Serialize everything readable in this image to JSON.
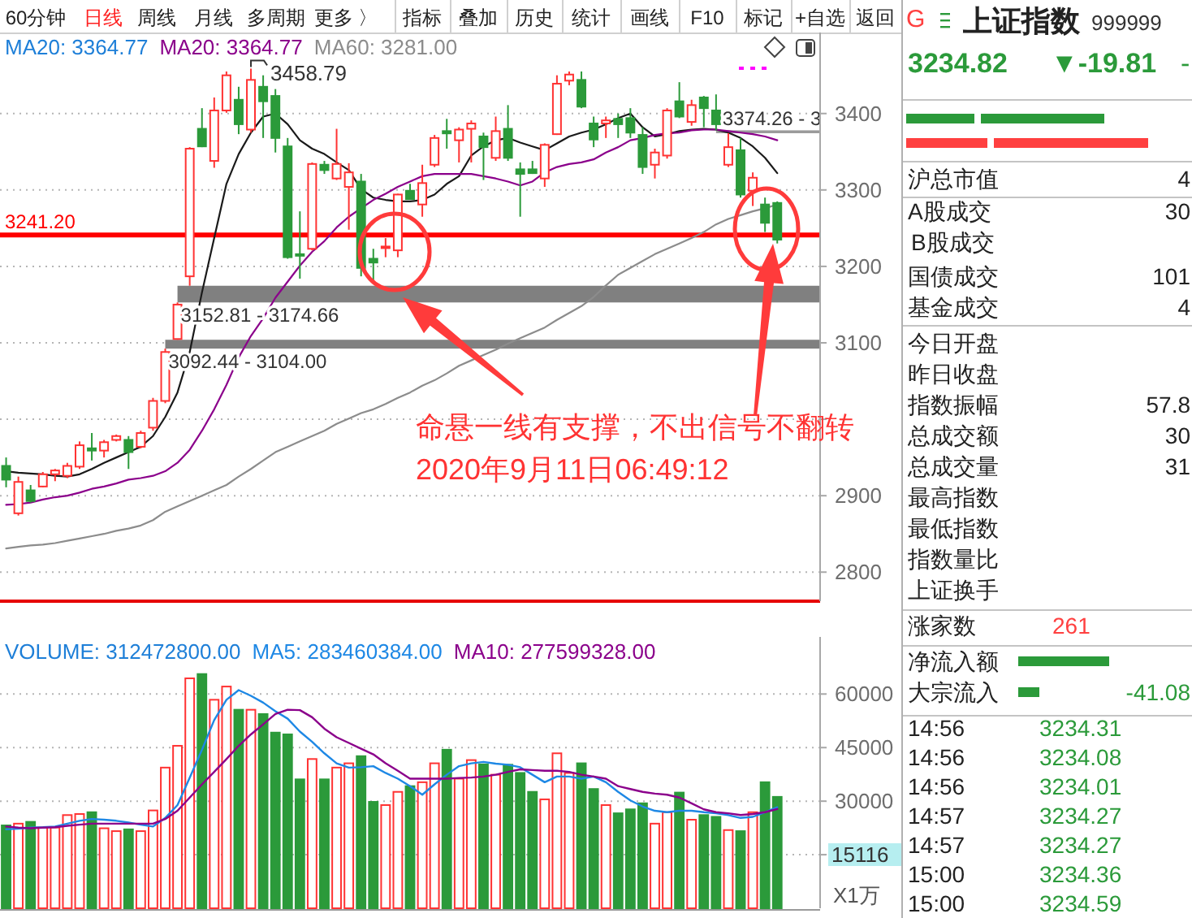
{
  "chart_data": [
    {
      "type": "other",
      "annotations": [
        "60分钟",
        "日线",
        "周线",
        "月线",
        "多周期",
        "更多 〉",
        "指标",
        "叠加",
        "历史",
        "统计",
        "画线",
        "F10",
        "标记",
        "+自选",
        "返回"
      ]
    },
    {
      "type": "candlestick",
      "categories": [
        null,
        null,
        null,
        null,
        null,
        null,
        null,
        null,
        null,
        null,
        null,
        null,
        null,
        null,
        null,
        null,
        null,
        null,
        null,
        null,
        null,
        null,
        null,
        null,
        null,
        null,
        null,
        null,
        null,
        null,
        null,
        null,
        null,
        null,
        null,
        null,
        null,
        null,
        null,
        null,
        null,
        null,
        null,
        null,
        null,
        null,
        null,
        null,
        null,
        null,
        null,
        null,
        null,
        null,
        null,
        null,
        null,
        null,
        null,
        null,
        null,
        null,
        null,
        null,
        null,
        null,
        null
      ],
      "ohlc": [
        [
          2939,
          2950,
          2911,
          2921
        ],
        [
          2877,
          2925,
          2874,
          2918
        ],
        [
          2907,
          2914,
          2891,
          2893
        ],
        [
          2912,
          2931,
          2911,
          2928
        ],
        [
          2928,
          2935,
          2919,
          2933
        ],
        [
          2926,
          2943,
          2923,
          2939
        ],
        [
          2938,
          2971,
          2935,
          2966
        ],
        [
          2962,
          2982,
          2946,
          2959
        ],
        [
          2959,
          2973,
          2950,
          2970
        ],
        [
          2973,
          2980,
          2971,
          2978
        ],
        [
          2973,
          2978,
          2935,
          2957
        ],
        [
          2964,
          2985,
          2962,
          2982
        ],
        [
          2989,
          3028,
          2985,
          3024
        ],
        [
          3024,
          3092.44,
          3021,
          3088
        ],
        [
          3105,
          3152.81,
          3104.0,
          3150
        ],
        [
          3187,
          3356,
          3174.66,
          3354
        ],
        [
          3380,
          3407,
          3356,
          3357
        ],
        [
          3338,
          3421,
          3329,
          3404
        ],
        [
          3404,
          3455,
          3401,
          3450
        ],
        [
          3418,
          3435,
          3373,
          3386
        ],
        [
          3379,
          3458.79,
          3375,
          3444
        ],
        [
          3435,
          3450,
          3368,
          3416
        ],
        [
          3423,
          3432,
          3349,
          3368
        ],
        [
          3357,
          3368,
          3210,
          3212
        ],
        [
          3216,
          3272,
          3184,
          3214
        ],
        [
          3223,
          3336,
          3221,
          3334
        ],
        [
          3333,
          3338,
          3321,
          3326
        ],
        [
          3315,
          3380,
          3313,
          3334
        ],
        [
          3304,
          3335,
          3248,
          3323
        ],
        [
          3311,
          3321,
          3187,
          3198
        ],
        [
          3210,
          3223,
          3177,
          3205
        ],
        [
          3224,
          3237,
          3212,
          3226
        ],
        [
          3221,
          3295,
          3212,
          3294
        ],
        [
          3299,
          3308,
          3287,
          3288
        ],
        [
          3281,
          3333,
          3265,
          3309
        ],
        [
          3333,
          3372,
          3330,
          3368
        ],
        [
          3377,
          3393,
          3354,
          3374
        ],
        [
          3365,
          3382,
          3336,
          3379
        ],
        [
          3380,
          3391,
          3336,
          3387
        ],
        [
          3370,
          3375,
          3313,
          3356
        ],
        [
          3342,
          3396,
          3338,
          3377
        ],
        [
          3380,
          3411,
          3338,
          3342
        ],
        [
          3327,
          3336,
          3265,
          3321
        ],
        [
          3327,
          3338,
          3321,
          3322
        ],
        [
          3315,
          3361,
          3304,
          3359
        ],
        [
          3373,
          3450,
          3372,
          3439
        ],
        [
          3443,
          3455,
          3437,
          3451
        ],
        [
          3444,
          3455,
          3407,
          3409
        ],
        [
          3387,
          3396,
          3356,
          3366
        ],
        [
          3387,
          3396,
          3368,
          3391
        ],
        [
          3393,
          3400,
          3368,
          3386
        ],
        [
          3394,
          3407,
          3368,
          3375
        ],
        [
          3372,
          3382,
          3321,
          3330
        ],
        [
          3333,
          3354,
          3315,
          3349
        ],
        [
          3345,
          3407,
          3341,
          3404
        ],
        [
          3416,
          3441,
          3394,
          3396
        ],
        [
          3389,
          3418,
          3384,
          3411
        ],
        [
          3421,
          3423,
          3382,
          3407
        ],
        [
          3404,
          3425,
          3378,
          3386
        ],
        [
          3333,
          3374.26,
          3330,
          3356
        ],
        [
          3352,
          3368,
          3290,
          3294
        ],
        [
          3299,
          3323,
          3279,
          3316
        ],
        [
          3281,
          3290,
          3245,
          3257
        ],
        [
          3283,
          3285,
          3230,
          3235
        ],
        null,
        null,
        null
      ],
      "colors": [
        "#2b9a3a",
        "#ff3333",
        "#2b9a3a",
        "#ff3333",
        "#ff3333",
        "#ff3333",
        "#ff3333",
        "#2b9a3a",
        "#ff3333",
        "#ff3333",
        "#2b9a3a",
        "#ff3333",
        "#ff3333",
        "#ff3333",
        "#ff3333",
        "#ff3333",
        "#2b9a3a",
        "#ff3333",
        "#ff3333",
        "#2b9a3a",
        "#ff3333",
        "#2b9a3a",
        "#2b9a3a",
        "#2b9a3a",
        "#2b9a3a",
        "#ff3333",
        "#2b9a3a",
        "#ff3333",
        "#ff3333",
        "#2b9a3a",
        "#2b9a3a",
        "#ff3333",
        "#ff3333",
        "#2b9a3a",
        "#ff3333",
        "#ff3333",
        "#2b9a3a",
        "#ff3333",
        "#ff3333",
        "#2b9a3a",
        "#ff3333",
        "#2b9a3a",
        "#2b9a3a",
        "#2b9a3a",
        "#ff3333",
        "#ff3333",
        "#ff3333",
        "#2b9a3a",
        "#2b9a3a",
        "#ff3333",
        "#2b9a3a",
        "#2b9a3a",
        "#2b9a3a",
        "#ff3333",
        "#ff3333",
        "#2b9a3a",
        "#ff3333",
        "#2b9a3a",
        "#2b9a3a",
        "#ff3333",
        "#2b9a3a",
        "#ff3333",
        "#2b9a3a",
        "#2b9a3a",
        null,
        null,
        null
      ],
      "series": [
        {
          "type": "line",
          "color": "#1a1a1a",
          "values": [
            2932,
            2930,
            2929,
            2928,
            2926,
            2925,
            2928,
            2935,
            2943,
            2950,
            2957,
            2964,
            2978,
            3003,
            3035,
            3088,
            3166,
            3237,
            3308,
            3347,
            3375,
            3396,
            3400,
            3386,
            3365,
            3354,
            3347,
            3336,
            3326,
            3301,
            3290,
            3287,
            3285,
            3285,
            3287,
            3294,
            3308,
            3318,
            3345,
            3357,
            3365,
            3368,
            3362,
            3357,
            3352,
            3361,
            3370,
            3375,
            3379,
            3386,
            3394,
            3400,
            3382,
            3370,
            3373,
            3377,
            3379,
            3380,
            3379,
            3375,
            3368,
            3357,
            3342,
            3322,
            null,
            null,
            null
          ]
        },
        {
          "type": "line",
          "name": "MA20: 3364.77",
          "color": "#8b008b",
          "values": [
            2888,
            2889,
            2891,
            2895,
            2898,
            2900,
            2904,
            2909,
            2912,
            2916,
            2921,
            2923,
            2926,
            2932,
            2943,
            2960,
            2985,
            3013,
            3045,
            3081,
            3109,
            3132,
            3159,
            3180,
            3201,
            3219,
            3233,
            3251,
            3265,
            3276,
            3287,
            3295,
            3304,
            3311,
            3318,
            3321,
            3321,
            3321,
            3321,
            3318,
            3315,
            3311,
            3306,
            3311,
            3323,
            3330,
            3334,
            3336,
            3340,
            3349,
            3356,
            3365,
            3368,
            3372,
            3374,
            3375,
            3378,
            3379,
            3379,
            3377,
            3375,
            3373,
            3370,
            3365,
            null,
            null,
            null
          ]
        },
        {
          "type": "line",
          "name": "MA60: 3281.00",
          "color": "#8c8c8c",
          "values": [
            2831,
            2833,
            2835,
            2836,
            2838,
            2841,
            2844,
            2847,
            2850,
            2854,
            2857,
            2861,
            2868,
            2879,
            2886,
            2893,
            2900,
            2907,
            2914,
            2925,
            2935,
            2946,
            2957,
            2964,
            2971,
            2978,
            2985,
            2994,
            3001,
            3008,
            3013,
            3020,
            3028,
            3035,
            3044,
            3051,
            3060,
            3070,
            3077,
            3084,
            3091,
            3099,
            3106,
            3113,
            3120,
            3130,
            3139,
            3148,
            3160,
            3175,
            3189,
            3198,
            3207,
            3216,
            3223,
            3230,
            3237,
            3245,
            3255,
            3262,
            3267,
            3272,
            3276,
            3281,
            null,
            null,
            null
          ]
        }
      ],
      "ylim": [
        2762,
        3506
      ],
      "yticks": [
        2800,
        2900,
        {
          "value": 3000,
          "label": null
        },
        3100,
        3200,
        3300,
        3400
      ],
      "grid": "y",
      "legend": "top left",
      "tick_labels": "y",
      "bands": [
        {
          "axis": "y",
          "from": 3152.81,
          "to": 3174.66,
          "label": "3152.81 - 3174.66",
          "color": "#808080"
        },
        {
          "axis": "y",
          "from": 3092.44,
          "to": 3104.0,
          "label": "3092.44 - 3104.00",
          "color": "#808080"
        },
        {
          "axis": "y",
          "from": 3374.26,
          "to": 3378,
          "label": "3374.26 - 3",
          "color": "#9a9a9a"
        }
      ],
      "ref_lines": [
        {
          "axis": "y",
          "value": 3241.2,
          "label": "3241.20",
          "color": "#ff0000"
        }
      ],
      "annotations": [
        "MA20: 3364.77",
        "3458.79",
        "命悬一线有支撑，不出信号不翻转",
        "2020年9月11日06:49:12"
      ]
    },
    {
      "type": "bar",
      "categories": [
        null,
        null,
        null,
        null,
        null,
        null,
        null,
        null,
        null,
        null,
        null,
        null,
        null,
        null,
        null,
        null,
        null,
        null,
        null,
        null,
        null,
        null,
        null,
        null,
        null,
        null,
        null,
        null,
        null,
        null,
        null,
        null,
        null,
        null,
        null,
        null,
        null,
        null,
        null,
        null,
        null,
        null,
        null,
        null,
        null,
        null,
        null,
        null,
        null,
        null,
        null,
        null,
        null,
        null,
        null,
        null,
        null,
        null,
        null,
        null,
        null,
        null,
        null,
        null,
        null,
        null,
        null
      ],
      "series": [
        {
          "colors": [
            "#2b9a3a",
            "#ff3333",
            "#2b9a3a",
            "#ff3333",
            "#ff3333",
            "#ff3333",
            "#ff3333",
            "#2b9a3a",
            "#ff3333",
            "#ff3333",
            "#2b9a3a",
            "#ff3333",
            "#ff3333",
            "#ff3333",
            "#ff3333",
            "#ff3333",
            "#2b9a3a",
            "#ff3333",
            "#ff3333",
            "#2b9a3a",
            "#ff3333",
            "#2b9a3a",
            "#2b9a3a",
            "#2b9a3a",
            "#2b9a3a",
            "#ff3333",
            "#2b9a3a",
            "#ff3333",
            "#ff3333",
            "#2b9a3a",
            "#2b9a3a",
            "#ff3333",
            "#ff3333",
            "#2b9a3a",
            "#ff3333",
            "#ff3333",
            "#2b9a3a",
            "#ff3333",
            "#ff3333",
            "#2b9a3a",
            "#ff3333",
            "#2b9a3a",
            "#2b9a3a",
            "#2b9a3a",
            "#ff3333",
            "#ff3333",
            "#ff3333",
            "#2b9a3a",
            "#2b9a3a",
            "#ff3333",
            "#2b9a3a",
            "#2b9a3a",
            "#2b9a3a",
            "#ff3333",
            "#ff3333",
            "#2b9a3a",
            "#ff3333",
            "#2b9a3a",
            "#2b9a3a",
            "#ff3333",
            "#2b9a3a",
            "#ff3333",
            "#2b9a3a",
            "#2b9a3a",
            null,
            null,
            null
          ],
          "values": [
            23200,
            23700,
            24200,
            22600,
            22600,
            26100,
            26400,
            26900,
            22400,
            21600,
            22100,
            21600,
            27400,
            39400,
            45500,
            64400,
            65600,
            58400,
            62100,
            55600,
            55600,
            54400,
            49200,
            48700,
            36100,
            41800,
            36100,
            39400,
            40600,
            42600,
            29800,
            28900,
            32600,
            34200,
            35300,
            40600,
            44400,
            36300,
            41500,
            40300,
            37400,
            40200,
            37900,
            32600,
            30500,
            43400,
            37900,
            40600,
            33400,
            28900,
            26600,
            27700,
            29400,
            23700,
            26900,
            32400,
            24800,
            26100,
            25600,
            21900,
            21600,
            26900,
            35300,
            31200,
            null,
            null,
            null
          ]
        },
        {
          "type": "line",
          "name": "MA5: 283460384.00",
          "color": "#1e88e5",
          "values": [
            22100,
            22300,
            22600,
            22700,
            22900,
            23700,
            24500,
            25000,
            24800,
            24500,
            24000,
            23400,
            22900,
            25300,
            28900,
            36600,
            44400,
            52700,
            58400,
            61100,
            59500,
            57600,
            55200,
            53100,
            49500,
            46600,
            43400,
            40600,
            39400,
            39500,
            39800,
            37900,
            36300,
            34200,
            31800,
            34700,
            37400,
            39800,
            40600,
            41000,
            40500,
            40200,
            39500,
            37400,
            35300,
            36900,
            36900,
            36300,
            36900,
            35300,
            32600,
            30200,
            28500,
            27300,
            26900,
            27300,
            27300,
            26900,
            26600,
            26100,
            25300,
            25600,
            26900,
            28300,
            null,
            null,
            null
          ]
        },
        {
          "type": "line",
          "name": "MA10: 277599328.00",
          "color": "#8b008b",
          "values": [
            22900,
            22600,
            22400,
            22600,
            22700,
            23100,
            23400,
            23700,
            23700,
            23700,
            23700,
            23700,
            23700,
            25000,
            27300,
            31000,
            34700,
            38200,
            41800,
            45500,
            48700,
            51500,
            54400,
            55600,
            55500,
            53500,
            50300,
            47900,
            46300,
            44700,
            43100,
            40600,
            38500,
            36300,
            36300,
            36300,
            36300,
            36500,
            36600,
            36900,
            37400,
            38200,
            38900,
            38700,
            38500,
            38500,
            38200,
            37400,
            36900,
            36300,
            34200,
            33400,
            32600,
            32100,
            31800,
            31000,
            29400,
            27700,
            26900,
            26600,
            26100,
            26400,
            26900,
            27800,
            null,
            null,
            null
          ]
        }
      ],
      "ylim": [
        0,
        76000
      ],
      "yticks": [
        {
          "value": 15000,
          "label": null
        },
        30000,
        45000,
        60000
      ],
      "ylabel": "X1万",
      "grid": "y",
      "legend": "top",
      "tick_labels": "y",
      "annotations": [
        "VOLUME: 312472800.00",
        "15116"
      ]
    },
    {
      "type": "other",
      "annotations": [
        "G",
        "上证指数",
        "999999",
        "3234.82",
        "▼-19.81",
        "-",
        "沪总市值",
        "4",
        "A股成交",
        "30",
        "B股成交",
        "国债成交",
        "101",
        "基金成交",
        "4",
        "今日开盘",
        "昨日收盘",
        "指数振幅",
        "57.8",
        "总成交额",
        "30",
        "总成交量",
        "31",
        "最高指数",
        "最低指数",
        "指数量比",
        "上证换手",
        "涨家数",
        "261",
        "净流入额",
        "大宗流入",
        "-41.08",
        "14:56",
        "3234.31",
        "14:56",
        "3234.08",
        "14:56",
        "3234.01",
        "14:57",
        "3234.27",
        "14:57",
        "3234.27",
        "15:00",
        "3234.36",
        "15:00",
        "3234.59"
      ]
    }
  ]
}
